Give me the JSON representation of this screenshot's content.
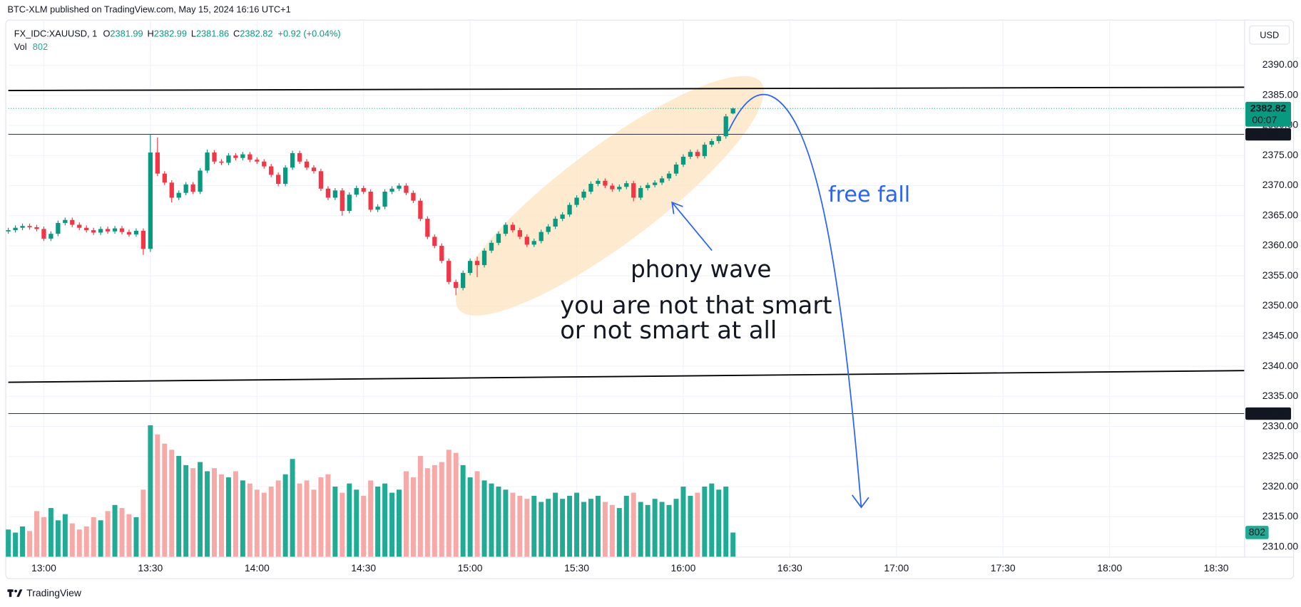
{
  "header": "BTC-XLM published on TradingView.com, May 15, 2024 16:16 UTC+1",
  "brand": "TradingView",
  "chart_data": {
    "type": "candlestick",
    "symbol": "FX_IDC:XAUUSD, 1",
    "legend_keys": [
      "O",
      "H",
      "L",
      "C"
    ],
    "change": "+0.92 (+0.04%)",
    "volume_label": "Vol",
    "countdown": "00:07",
    "currency": "USD",
    "up_color": "#089981",
    "down_color": "#f23645",
    "volume_up_color": "#22ab94",
    "volume_down_color": "#f7a9a7",
    "grid": true,
    "ylim": [
      2308.3,
      2397.5
    ],
    "yticks": [
      {
        "value": 2310,
        "label": "2310.00"
      },
      {
        "value": 2315,
        "label": "2315.00"
      },
      {
        "value": 2320,
        "label": "2320.00"
      },
      {
        "value": 2325,
        "label": "2325.00"
      },
      {
        "value": 2330,
        "label": "2330.00"
      },
      {
        "value": 2335,
        "label": "2335.00"
      },
      {
        "value": 2340,
        "label": "2340.00"
      },
      {
        "value": 2345,
        "label": "2345.00"
      },
      {
        "value": 2350,
        "label": "2350.00"
      },
      {
        "value": 2355,
        "label": "2355.00"
      },
      {
        "value": 2360,
        "label": "2360.00"
      },
      {
        "value": 2365,
        "label": "2365.00"
      },
      {
        "value": 2370,
        "label": "2370.00"
      },
      {
        "value": 2375,
        "label": "2375.00"
      },
      {
        "value": 2380,
        "label": "2380.00"
      },
      {
        "value": 2385,
        "label": "2385.00"
      },
      {
        "value": 2390,
        "label": "2390.00"
      }
    ],
    "xlim": [
      "12:50",
      "18:38"
    ],
    "xticks": [
      "13:00",
      "13:30",
      "14:00",
      "14:30",
      "15:00",
      "15:30",
      "16:00",
      "16:30",
      "17:00",
      "17:30",
      "18:00",
      "18:30"
    ],
    "hlines": [
      2378.52,
      2332.13
    ],
    "annotations": [
      "phony wave",
      "you are not that smart",
      "or not smart at all",
      "free fall"
    ],
    "x": [
      "12:50",
      "12:52",
      "12:54",
      "12:56",
      "12:58",
      "13:00",
      "13:02",
      "13:04",
      "13:06",
      "13:08",
      "13:10",
      "13:12",
      "13:14",
      "13:16",
      "13:18",
      "13:20",
      "13:22",
      "13:24",
      "13:26",
      "13:28",
      "13:30",
      "13:32",
      "13:34",
      "13:36",
      "13:38",
      "13:40",
      "13:42",
      "13:44",
      "13:46",
      "13:48",
      "13:50",
      "13:52",
      "13:54",
      "13:56",
      "13:58",
      "14:00",
      "14:02",
      "14:04",
      "14:06",
      "14:08",
      "14:10",
      "14:12",
      "14:14",
      "14:16",
      "14:18",
      "14:20",
      "14:22",
      "14:24",
      "14:26",
      "14:28",
      "14:30",
      "14:32",
      "14:34",
      "14:36",
      "14:38",
      "14:40",
      "14:42",
      "14:44",
      "14:46",
      "14:48",
      "14:50",
      "14:52",
      "14:54",
      "14:56",
      "14:58",
      "15:00",
      "15:02",
      "15:04",
      "15:06",
      "15:08",
      "15:10",
      "15:12",
      "15:14",
      "15:16",
      "15:18",
      "15:20",
      "15:22",
      "15:24",
      "15:26",
      "15:28",
      "15:30",
      "15:32",
      "15:34",
      "15:36",
      "15:38",
      "15:40",
      "15:42",
      "15:44",
      "15:46",
      "15:48",
      "15:50",
      "15:52",
      "15:54",
      "15:56",
      "15:58",
      "16:00",
      "16:02",
      "16:04",
      "16:06",
      "16:08",
      "16:10",
      "16:12",
      "16:14"
    ],
    "candles": [
      [
        2362.4,
        2363.0,
        2362.0,
        2362.6
      ],
      [
        2362.6,
        2363.4,
        2362.2,
        2363.0
      ],
      [
        2363.0,
        2363.7,
        2362.6,
        2363.3
      ],
      [
        2363.3,
        2363.7,
        2362.7,
        2363.1
      ],
      [
        2363.1,
        2363.5,
        2362.4,
        2362.8
      ],
      [
        2362.8,
        2363.2,
        2360.8,
        2361.2
      ],
      [
        2361.2,
        2362.4,
        2360.8,
        2362.0
      ],
      [
        2362.0,
        2364.2,
        2361.6,
        2363.8
      ],
      [
        2363.8,
        2364.7,
        2363.4,
        2364.3
      ],
      [
        2364.3,
        2364.7,
        2363.1,
        2363.5
      ],
      [
        2363.5,
        2363.9,
        2362.6,
        2363.0
      ],
      [
        2363.0,
        2363.4,
        2362.2,
        2362.6
      ],
      [
        2362.6,
        2363.0,
        2361.8,
        2362.2
      ],
      [
        2362.2,
        2363.2,
        2361.8,
        2362.8
      ],
      [
        2362.8,
        2363.2,
        2362.0,
        2362.4
      ],
      [
        2362.4,
        2363.3,
        2362.0,
        2362.9
      ],
      [
        2362.9,
        2363.3,
        2361.9,
        2362.3
      ],
      [
        2362.3,
        2362.7,
        2361.5,
        2361.9
      ],
      [
        2361.9,
        2362.9,
        2361.5,
        2362.5
      ],
      [
        2362.5,
        2362.9,
        2358.5,
        2359.5
      ],
      [
        2359.5,
        2378.5,
        2359.0,
        2375.5
      ],
      [
        2375.5,
        2378.0,
        2371.6,
        2372.0
      ],
      [
        2372.0,
        2372.4,
        2370.1,
        2370.5
      ],
      [
        2370.5,
        2370.9,
        2367.2,
        2368.0
      ],
      [
        2368.0,
        2369.2,
        2367.6,
        2368.8
      ],
      [
        2368.8,
        2370.6,
        2368.4,
        2370.2
      ],
      [
        2370.2,
        2370.6,
        2368.6,
        2369.0
      ],
      [
        2369.0,
        2372.9,
        2368.6,
        2372.5
      ],
      [
        2372.5,
        2376.0,
        2372.1,
        2375.5
      ],
      [
        2375.5,
        2375.9,
        2373.6,
        2374.0
      ],
      [
        2374.0,
        2374.4,
        2373.4,
        2373.8
      ],
      [
        2373.8,
        2375.4,
        2373.4,
        2375.0
      ],
      [
        2375.0,
        2375.4,
        2374.2,
        2374.6
      ],
      [
        2374.6,
        2375.6,
        2374.2,
        2375.2
      ],
      [
        2375.2,
        2375.6,
        2373.9,
        2374.3
      ],
      [
        2374.3,
        2374.7,
        2373.6,
        2374.0
      ],
      [
        2374.0,
        2374.4,
        2372.8,
        2373.2
      ],
      [
        2373.2,
        2373.6,
        2371.4,
        2371.8
      ],
      [
        2371.8,
        2372.2,
        2369.9,
        2370.3
      ],
      [
        2370.3,
        2373.4,
        2369.9,
        2373.0
      ],
      [
        2373.0,
        2375.8,
        2372.6,
        2375.4
      ],
      [
        2375.4,
        2375.8,
        2373.6,
        2374.0
      ],
      [
        2374.0,
        2374.4,
        2372.6,
        2373.0
      ],
      [
        2373.0,
        2373.4,
        2372.0,
        2372.4
      ],
      [
        2372.4,
        2372.8,
        2369.1,
        2369.5
      ],
      [
        2369.5,
        2369.9,
        2367.6,
        2368.0
      ],
      [
        2368.0,
        2369.6,
        2367.6,
        2369.2
      ],
      [
        2369.2,
        2369.6,
        2365.0,
        2365.8
      ],
      [
        2365.8,
        2368.9,
        2365.4,
        2368.5
      ],
      [
        2368.5,
        2370.0,
        2368.1,
        2369.6
      ],
      [
        2369.6,
        2370.0,
        2368.6,
        2369.0
      ],
      [
        2369.0,
        2369.4,
        2365.6,
        2366.0
      ],
      [
        2366.0,
        2366.9,
        2365.6,
        2366.5
      ],
      [
        2366.5,
        2369.4,
        2366.1,
        2369.0
      ],
      [
        2369.0,
        2369.9,
        2368.6,
        2369.5
      ],
      [
        2369.5,
        2370.4,
        2369.1,
        2370.0
      ],
      [
        2370.0,
        2370.4,
        2368.4,
        2368.8
      ],
      [
        2368.8,
        2369.2,
        2367.1,
        2367.5
      ],
      [
        2367.5,
        2367.9,
        2364.1,
        2364.5
      ],
      [
        2364.5,
        2364.9,
        2361.1,
        2361.5
      ],
      [
        2361.5,
        2361.9,
        2359.6,
        2360.0
      ],
      [
        2360.0,
        2360.4,
        2357.1,
        2357.5
      ],
      [
        2357.5,
        2357.9,
        2353.6,
        2354.0
      ],
      [
        2354.0,
        2354.4,
        2351.8,
        2353.0
      ],
      [
        2353.0,
        2355.9,
        2352.6,
        2355.5
      ],
      [
        2355.5,
        2357.9,
        2355.1,
        2357.5
      ],
      [
        2357.5,
        2358.2,
        2354.8,
        2356.8
      ],
      [
        2356.8,
        2359.6,
        2356.4,
        2359.2
      ],
      [
        2359.2,
        2360.9,
        2358.8,
        2360.5
      ],
      [
        2360.5,
        2362.4,
        2360.1,
        2362.0
      ],
      [
        2362.0,
        2363.9,
        2361.6,
        2363.5
      ],
      [
        2363.5,
        2363.9,
        2362.2,
        2362.6
      ],
      [
        2362.6,
        2363.0,
        2361.1,
        2361.5
      ],
      [
        2361.5,
        2361.9,
        2359.8,
        2360.2
      ],
      [
        2360.2,
        2361.2,
        2359.8,
        2360.8
      ],
      [
        2360.8,
        2362.7,
        2360.4,
        2362.3
      ],
      [
        2362.3,
        2363.6,
        2361.9,
        2363.2
      ],
      [
        2363.2,
        2364.9,
        2362.8,
        2364.5
      ],
      [
        2364.5,
        2365.6,
        2364.1,
        2365.2
      ],
      [
        2365.2,
        2367.2,
        2364.8,
        2366.8
      ],
      [
        2366.8,
        2368.4,
        2366.4,
        2368.0
      ],
      [
        2368.0,
        2369.4,
        2367.6,
        2369.0
      ],
      [
        2369.0,
        2370.7,
        2368.6,
        2370.3
      ],
      [
        2370.3,
        2371.2,
        2369.9,
        2370.8
      ],
      [
        2370.8,
        2371.2,
        2369.6,
        2370.0
      ],
      [
        2370.0,
        2370.4,
        2369.0,
        2369.4
      ],
      [
        2369.4,
        2370.2,
        2369.0,
        2369.8
      ],
      [
        2369.8,
        2370.8,
        2369.4,
        2370.4
      ],
      [
        2370.4,
        2370.8,
        2367.4,
        2368.0
      ],
      [
        2368.0,
        2370.0,
        2367.6,
        2369.6
      ],
      [
        2369.6,
        2370.5,
        2369.2,
        2370.1
      ],
      [
        2370.1,
        2370.9,
        2369.7,
        2370.5
      ],
      [
        2370.5,
        2371.6,
        2370.1,
        2371.2
      ],
      [
        2371.2,
        2372.4,
        2370.8,
        2372.0
      ],
      [
        2372.0,
        2373.9,
        2371.6,
        2373.5
      ],
      [
        2373.5,
        2375.2,
        2373.1,
        2374.8
      ],
      [
        2374.8,
        2376.0,
        2374.4,
        2375.6
      ],
      [
        2375.6,
        2376.0,
        2374.5,
        2374.9
      ],
      [
        2374.9,
        2377.2,
        2374.5,
        2376.8
      ],
      [
        2376.8,
        2377.8,
        2376.4,
        2377.4
      ],
      [
        2377.4,
        2378.6,
        2377.0,
        2378.2
      ],
      [
        2378.2,
        2381.9,
        2377.8,
        2381.5
      ],
      [
        2381.99,
        2382.99,
        2381.86,
        2382.82
      ]
    ],
    "volume": [
      900,
      800,
      1000,
      850,
      1500,
      1300,
      1600,
      1200,
      1400,
      1100,
      900,
      1000,
      1300,
      1200,
      1500,
      1700,
      1600,
      1400,
      1300,
      2200,
      4300,
      4000,
      3700,
      3500,
      3300,
      3000,
      2900,
      3100,
      2800,
      2900,
      2700,
      2600,
      2800,
      2500,
      2400,
      2200,
      2100,
      2300,
      2500,
      2700,
      3200,
      2400,
      2500,
      2200,
      2600,
      2700,
      2300,
      2100,
      2400,
      2200,
      2000,
      2500,
      2300,
      2400,
      2100,
      2200,
      2800,
      2600,
      3300,
      2900,
      3000,
      3100,
      3500,
      3400,
      3000,
      2600,
      2800,
      2500,
      2400,
      2300,
      2200,
      2100,
      2000,
      1900,
      2000,
      1800,
      1900,
      2100,
      1900,
      2000,
      2100,
      1800,
      1900,
      2000,
      1800,
      1700,
      1600,
      2000,
      2100,
      1800,
      1700,
      1900,
      1800,
      1700,
      1900,
      2300,
      2000,
      2100,
      2300,
      2400,
      2200,
      2300,
      802
    ]
  }
}
